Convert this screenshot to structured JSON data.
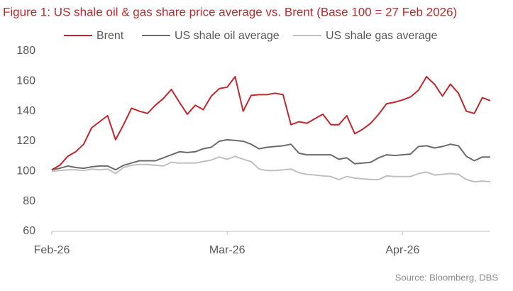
{
  "chart_data": {
    "type": "line",
    "title": "Figure 1: US shale oil & gas share price average vs. Brent (Base 100 = 27 Feb 2026)",
    "source": "Source: Bloomberg, DBS",
    "categories": [
      "Feb-26",
      null,
      null,
      null,
      null,
      null,
      null,
      null,
      null,
      null,
      null,
      null,
      null,
      null,
      null,
      null,
      null,
      null,
      null,
      null,
      null,
      null,
      "Mar-26",
      null,
      null,
      null,
      null,
      null,
      null,
      null,
      null,
      null,
      null,
      null,
      null,
      null,
      null,
      null,
      null,
      null,
      null,
      null,
      null,
      null,
      "Apr-26",
      null,
      null,
      null,
      null,
      null,
      null,
      null,
      null,
      null,
      null,
      null
    ],
    "series": [
      {
        "name": "Brent",
        "color": "#c0272d",
        "values": [
          101,
          104,
          110,
          113,
          118,
          129,
          133,
          137,
          121,
          131,
          142,
          140,
          138.5,
          144,
          148.5,
          154.5,
          146,
          138,
          144,
          141,
          150,
          155,
          156,
          163,
          140,
          150.5,
          151,
          151,
          152,
          151,
          131,
          133,
          132,
          135,
          138,
          131,
          131,
          137,
          125,
          128,
          132,
          138,
          145,
          146,
          147.5,
          149.5,
          154,
          163,
          158,
          150,
          158,
          152,
          140,
          138.5,
          149,
          147
        ]
      },
      {
        "name": "US shale oil average",
        "color": "#6b6b6b",
        "values": [
          101,
          102,
          103.5,
          102.5,
          102,
          103,
          103.5,
          103.5,
          101,
          104,
          105.5,
          107,
          107,
          107,
          109,
          111,
          113,
          112.5,
          113,
          115,
          116,
          120,
          121,
          120.5,
          120,
          118,
          115,
          116,
          116.5,
          117,
          118,
          112,
          111,
          111,
          111,
          111,
          108,
          109,
          105,
          105.5,
          106,
          109,
          111,
          110.5,
          111,
          111.5,
          116.5,
          117,
          115.5,
          116.5,
          118,
          117,
          110,
          107,
          109.5,
          109.5
        ]
      },
      {
        "name": "US shale gas average",
        "color": "#bfbfbf",
        "values": [
          100,
          100.5,
          101,
          101,
          100.5,
          101.5,
          101,
          101.5,
          98.5,
          102.5,
          104,
          104.5,
          104.5,
          104,
          103.5,
          106,
          105.5,
          105.5,
          105.5,
          106.5,
          107.5,
          109.5,
          108,
          110,
          108,
          106.5,
          101.5,
          100.5,
          100.5,
          101,
          101.5,
          99,
          98,
          97.5,
          97,
          96.5,
          94.5,
          96.5,
          95.5,
          95,
          94.5,
          94.5,
          97,
          96.5,
          96.5,
          96.5,
          98.5,
          99.5,
          97.5,
          98,
          98.5,
          98,
          94.5,
          93,
          93.5,
          93
        ]
      }
    ],
    "ylim": [
      60,
      180
    ],
    "yticks": [
      60,
      80,
      100,
      120,
      140,
      160,
      180
    ],
    "grid": false,
    "legend": "top"
  }
}
